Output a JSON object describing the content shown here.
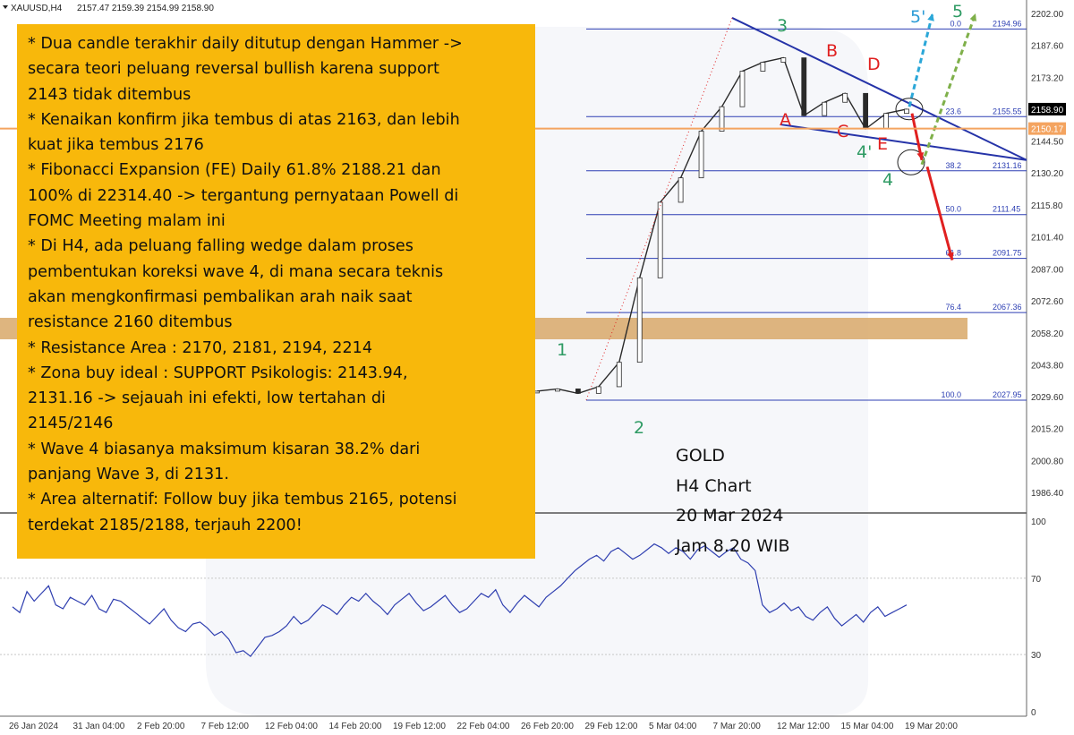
{
  "header": {
    "symbol": "XAUUSD,H4",
    "ohlc": "2157.47 2159.39 2154.99 2158.90"
  },
  "price_axis": {
    "ticks": [
      "2202.00",
      "2187.60",
      "2173.20",
      "2158.90",
      "2144.50",
      "2130.20",
      "2115.80",
      "2101.40",
      "2087.00",
      "2072.60",
      "2058.20",
      "2043.80",
      "2029.60",
      "2015.20",
      "2000.80",
      "1986.40"
    ],
    "current_price": "2158.90",
    "current_price_color": "#000000",
    "support_price": "2150.17",
    "support_color": "#f4a460"
  },
  "time_axis": {
    "ticks": [
      "26 Jan 2024",
      "31 Jan 04:00",
      "2 Feb 20:00",
      "7 Feb 12:00",
      "12 Feb 04:00",
      "14 Feb 20:00",
      "19 Feb 12:00",
      "22 Feb 04:00",
      "26 Feb 20:00",
      "29 Feb 12:00",
      "5 Mar 04:00",
      "7 Mar 20:00",
      "12 Mar 12:00",
      "15 Mar 04:00",
      "19 Mar 20:00"
    ]
  },
  "indicator_axis": {
    "ticks": [
      "100",
      "70",
      "30",
      "0"
    ]
  },
  "chart_data": {
    "type": "line",
    "title": "",
    "xlabel": "",
    "ylabel": "",
    "ylim": [
      1982,
      2204
    ],
    "price_path": {
      "x": [
        "19 Feb 12:00",
        "22 Feb 04:00",
        "26 Feb 20:00",
        "28 Feb",
        "29 Feb 12:00",
        "1 Mar",
        "4 Mar",
        "5 Mar 04:00",
        "6 Mar",
        "7 Mar",
        "7 Mar 20:00",
        "8 Mar",
        "11 Mar",
        "12 Mar 12:00",
        "13 Mar",
        "14 Mar",
        "15 Mar 04:00",
        "18 Mar",
        "19 Mar 20:00"
      ],
      "close": [
        2032,
        2033,
        2031,
        2034,
        2045,
        2083,
        2117,
        2128,
        2149,
        2160,
        2176,
        2180,
        2182,
        2156,
        2162,
        2166,
        2150,
        2157,
        2158.9
      ]
    },
    "fibonacci_expansion": [
      {
        "level": "0.0",
        "price": "2194.96"
      },
      {
        "level": "23.6",
        "price": "2155.55"
      },
      {
        "level": "38.2",
        "price": "2131.16"
      },
      {
        "level": "50.0",
        "price": "2111.45"
      },
      {
        "level": "61.8",
        "price": "2091.75"
      },
      {
        "level": "76.4",
        "price": "2067.36"
      },
      {
        "level": "100.0",
        "price": "2027.95"
      }
    ],
    "fibo_color": "#2d3fb3",
    "resistance_zone": {
      "from": 2054,
      "to": 2062,
      "color": "#d8a869"
    },
    "wave_labels": [
      {
        "label": "1",
        "color": "#2f9b64"
      },
      {
        "label": "2",
        "color": "#2f9b64"
      },
      {
        "label": "3",
        "color": "#2f9b64"
      },
      {
        "label": "4",
        "color": "#2f9b64"
      },
      {
        "label": "4'",
        "color": "#2f9b64"
      },
      {
        "label": "5",
        "color": "#2f9b64"
      },
      {
        "label": "5'",
        "color": "#2b9bd6"
      },
      {
        "label": "A",
        "color": "#e02020"
      },
      {
        "label": "B",
        "color": "#e02020"
      },
      {
        "label": "C",
        "color": "#e02020"
      },
      {
        "label": "D",
        "color": "#e02020"
      },
      {
        "label": "E",
        "color": "#e02020"
      }
    ],
    "wedge_color": "#2533a8",
    "arrows": [
      {
        "name": "bullish-arrow-5-prime",
        "color": "#2ba7d8"
      },
      {
        "name": "bullish-arrow-5",
        "color": "#7fb04a"
      },
      {
        "name": "bearish-arrow-to-wave-4",
        "color": "#e02020"
      },
      {
        "name": "bearish-arrow-to-61-8",
        "color": "#e02020"
      }
    ],
    "indicator": {
      "ylim": [
        0,
        100
      ],
      "values": [
        55,
        52,
        63,
        58,
        62,
        66,
        56,
        54,
        60,
        58,
        56,
        61,
        54,
        52,
        59,
        58,
        55,
        52,
        49,
        46,
        50,
        54,
        48,
        44,
        42,
        46,
        47,
        44,
        40,
        42,
        38,
        31,
        32,
        29,
        34,
        39,
        40,
        42,
        45,
        50,
        46,
        48,
        52,
        56,
        54,
        51,
        56,
        60,
        58,
        62,
        58,
        55,
        51,
        56,
        59,
        62,
        57,
        53,
        55,
        58,
        61,
        56,
        52,
        54,
        58,
        62,
        60,
        64,
        56,
        52,
        57,
        61,
        58,
        55,
        60,
        63,
        66,
        70,
        74,
        77,
        80,
        82,
        79,
        84,
        86,
        83,
        80,
        82,
        85,
        88,
        86,
        83,
        86,
        84,
        80,
        85,
        87,
        84,
        81,
        84,
        86,
        80,
        78,
        74,
        56,
        52,
        54,
        57,
        53,
        55,
        50,
        48,
        52,
        55,
        49,
        45,
        48,
        51,
        47,
        52,
        55,
        50,
        52,
        54,
        56
      ],
      "color": "#2f3fb0"
    }
  },
  "notes": {
    "lines": [
      "* Dua candle terakhir daily ditutup dengan Hammer ->",
      "secara teori peluang reversal bullish karena support",
      "2143 tidak ditembus",
      "* Kenaikan konfirm jika tembus di atas 2163, dan lebih",
      "kuat jika tembus 2176",
      "* Fibonacci Expansion (FE) Daily 61.8% 2188.21 dan",
      "100% di 22314.40 -> tergantung pernyataan Powell di",
      "FOMC Meeting malam ini",
      "* Di H4, ada peluang falling wedge dalam proses",
      "pembentukan koreksi wave 4, di mana secara teknis",
      "akan mengkonfirmasi pembalikan arah naik saat",
      "resistance 2160 ditembus",
      "* Resistance Area : 2170, 2181, 2194, 2214",
      "* Zona buy ideal : SUPPORT Psikologis: 2143.94,",
      "2131.16 -> sejauah ini efekti, low tertahan di",
      "2145/2146",
      "* Wave 4 biasanya maksimum kisaran 38.2% dari",
      "panjang Wave 3, di 2131.",
      "* Area alternatif: Follow buy jika tembus 2165, potensi",
      "terdekat 2185/2188, terjauh 2200!"
    ]
  },
  "caption": {
    "lines": [
      "GOLD",
      "H4 Chart",
      "20 Mar 2024",
      "Jam 8.20 WIB"
    ]
  }
}
